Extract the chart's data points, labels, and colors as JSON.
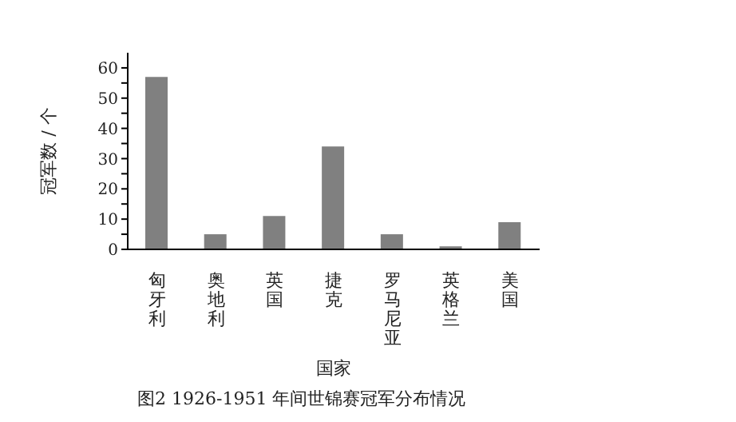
{
  "chart_data": {
    "type": "bar",
    "categories": [
      "匈牙利",
      "奥地利",
      "英国",
      "捷克",
      "罗马尼亚",
      "英格兰",
      "美国"
    ],
    "values": [
      57,
      5,
      11,
      34,
      5,
      1,
      9
    ],
    "color": "#808080",
    "ylabel": "冠军数 / 个",
    "xlabel": "国家",
    "ylim": [
      0,
      65
    ],
    "yticks": [
      0,
      {
        "value": 5,
        "label": null
      },
      10,
      {
        "value": 15,
        "label": null
      },
      20,
      {
        "value": 25,
        "label": null
      },
      30,
      {
        "value": 35,
        "label": null
      },
      40,
      {
        "value": 45,
        "label": null
      },
      50,
      {
        "value": 55,
        "label": null
      },
      60
    ],
    "grid": false,
    "annotations": [
      "图2 1926-1951 年间世锦赛冠军分布情况"
    ]
  }
}
